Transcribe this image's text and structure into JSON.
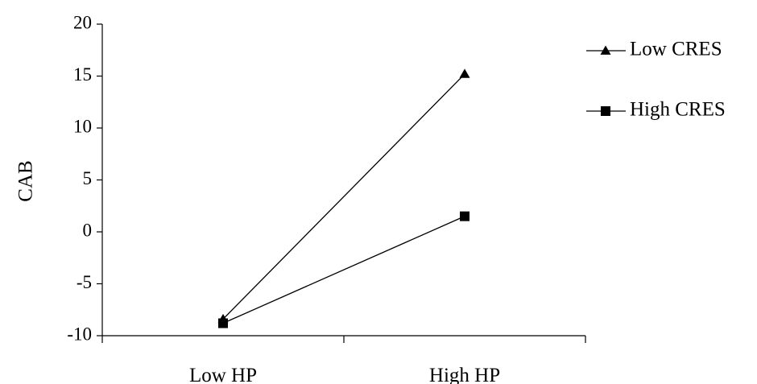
{
  "chart_data": {
    "type": "line",
    "title": "",
    "xlabel": "",
    "ylabel": "CAB",
    "categories": [
      "Low HP",
      "High HP"
    ],
    "ylim": [
      -10,
      20
    ],
    "yticks": [
      -10,
      -5,
      0,
      5,
      10,
      15,
      20
    ],
    "grid": false,
    "legend_position": "right",
    "series": [
      {
        "name": "Low CRES",
        "marker": "triangle",
        "color": "#000000",
        "values": [
          -8.4,
          15.2
        ]
      },
      {
        "name": "High CRES",
        "marker": "square",
        "color": "#000000",
        "values": [
          -8.8,
          1.5
        ]
      }
    ]
  }
}
